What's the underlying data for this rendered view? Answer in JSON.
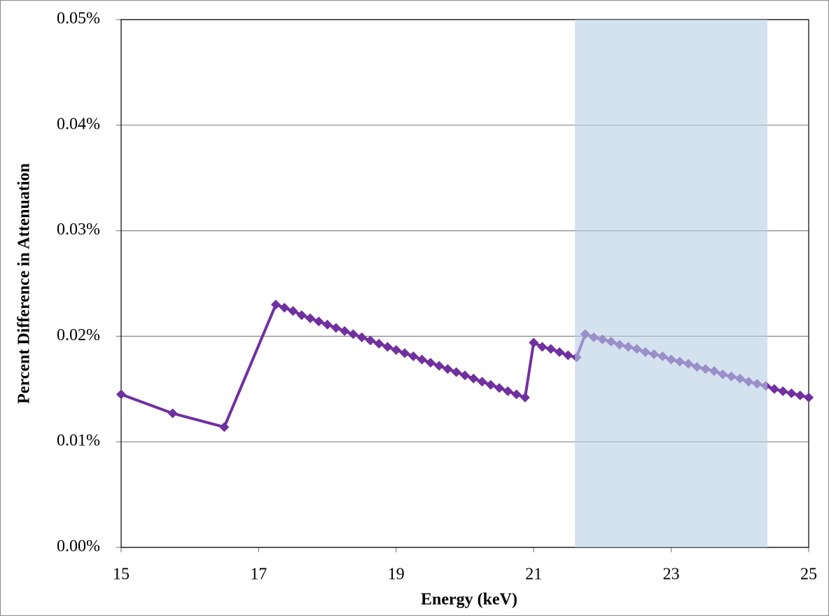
{
  "chart_data": {
    "type": "line",
    "x_label": "Energy (keV)",
    "y_label": "Percent Difference in Attenuation",
    "x": [
      15,
      15.75,
      16.5,
      17.25,
      17.375,
      17.5,
      17.625,
      17.75,
      17.875,
      18,
      18.125,
      18.25,
      18.375,
      18.5,
      18.625,
      18.75,
      18.875,
      19,
      19.125,
      19.25,
      19.375,
      19.5,
      19.625,
      19.75,
      19.875,
      20,
      20.125,
      20.25,
      20.375,
      20.5,
      20.625,
      20.75,
      20.875,
      21,
      21.125,
      21.25,
      21.375,
      21.5,
      21.625,
      21.75,
      21.875,
      22,
      22.125,
      22.25,
      22.375,
      22.5,
      22.625,
      22.75,
      22.875,
      23,
      23.125,
      23.25,
      23.375,
      23.5,
      23.625,
      23.75,
      23.875,
      24,
      24.125,
      24.25,
      24.375,
      24.5,
      24.625,
      24.75,
      24.875,
      25
    ],
    "series": [
      {
        "color": "#7030a0",
        "values": [
          0.0145,
          0.0127,
          0.0114,
          0.023,
          0.0227,
          0.0224,
          0.022,
          0.0217,
          0.0214,
          0.0211,
          0.0208,
          0.0205,
          0.0202,
          0.0199,
          0.0196,
          0.0193,
          0.019,
          0.0187,
          0.0184,
          0.0181,
          0.0178,
          0.0175,
          0.0172,
          0.0169,
          0.0166,
          0.0163,
          0.016,
          0.0157,
          0.0154,
          0.0151,
          0.0148,
          0.0145,
          0.0142,
          0.0194,
          0.019,
          0.0188,
          0.0185,
          0.0182,
          0.018,
          0.0202,
          0.0199,
          0.0197,
          0.0195,
          0.0192,
          0.019,
          0.0188,
          0.0185,
          0.0183,
          0.0181,
          0.0178,
          0.0176,
          0.0174,
          0.0171,
          0.0169,
          0.0167,
          0.0164,
          0.0162,
          0.016,
          0.0157,
          0.0155,
          0.0153,
          0.015,
          0.0148,
          0.0146,
          0.0144,
          0.0142
        ]
      }
    ],
    "highlight_xrange": [
      21.6,
      24.4
    ],
    "highlight_color": "#b8cee4",
    "xlim": [
      15,
      25
    ],
    "xticks": [
      15,
      17,
      19,
      21,
      23,
      25
    ],
    "ylim": [
      0,
      0.05
    ],
    "yticks": [
      {
        "value": 0,
        "label": "0.00%"
      },
      {
        "value": 0.01,
        "label": "0.01%"
      },
      {
        "value": 0.02,
        "label": "0.02%"
      },
      {
        "value": 0.03,
        "label": "0.03%"
      },
      {
        "value": 0.04,
        "label": "0.04%"
      },
      {
        "value": 0.05,
        "label": "0.05%"
      }
    ],
    "grid": true
  }
}
